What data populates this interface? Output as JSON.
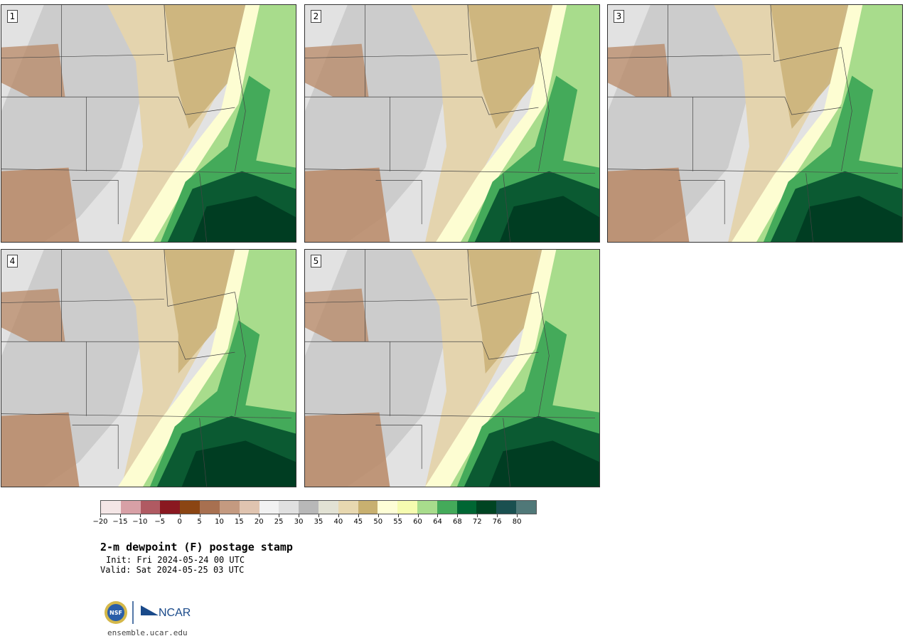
{
  "product": {
    "title": "2-m dewpoint (F) postage stamp",
    "init": "Init: Fri 2024-05-24 00 UTC",
    "valid": "Valid: Sat 2024-05-25 03 UTC"
  },
  "panels": [
    {
      "label": "1"
    },
    {
      "label": "2"
    },
    {
      "label": "3"
    },
    {
      "label": "4"
    },
    {
      "label": "5"
    }
  ],
  "colorbar": {
    "colors": [
      "#f4e6e6",
      "#d8a0a6",
      "#b05a62",
      "#8a1820",
      "#8b4513",
      "#a87050",
      "#c49a80",
      "#e0c4b0",
      "#f2f2f2",
      "#e0e0e0",
      "#b8b8b8",
      "#e2e2d4",
      "#e8d8b0",
      "#c8b070",
      "#fefed6",
      "#f6fcb0",
      "#a8dc8c",
      "#44aa5a",
      "#006633",
      "#004422",
      "#1a5050",
      "#507878"
    ],
    "tick_labels": [
      "−20",
      "−15",
      "−10",
      "−5",
      "0",
      "5",
      "10",
      "15",
      "20",
      "25",
      "30",
      "35",
      "40",
      "45",
      "50",
      "55",
      "60",
      "64",
      "68",
      "72",
      "76",
      "80"
    ]
  },
  "branding": {
    "nsf_text": "NSF",
    "ncar_text": "NCAR",
    "url": "ensemble.ucar.edu"
  },
  "map_colors": {
    "gray": "#c8c8c8",
    "light_gray": "#e2e2e2",
    "tan": "#e4d4ae",
    "dark_tan": "#cbb27a",
    "brown": "#b88866",
    "pale_yellow": "#fdfdd2",
    "light_green": "#a8dc8c",
    "green": "#44aa5a",
    "dark_green": "#0b5a32",
    "darkest_green": "#003d22",
    "state_line": "#444444"
  }
}
